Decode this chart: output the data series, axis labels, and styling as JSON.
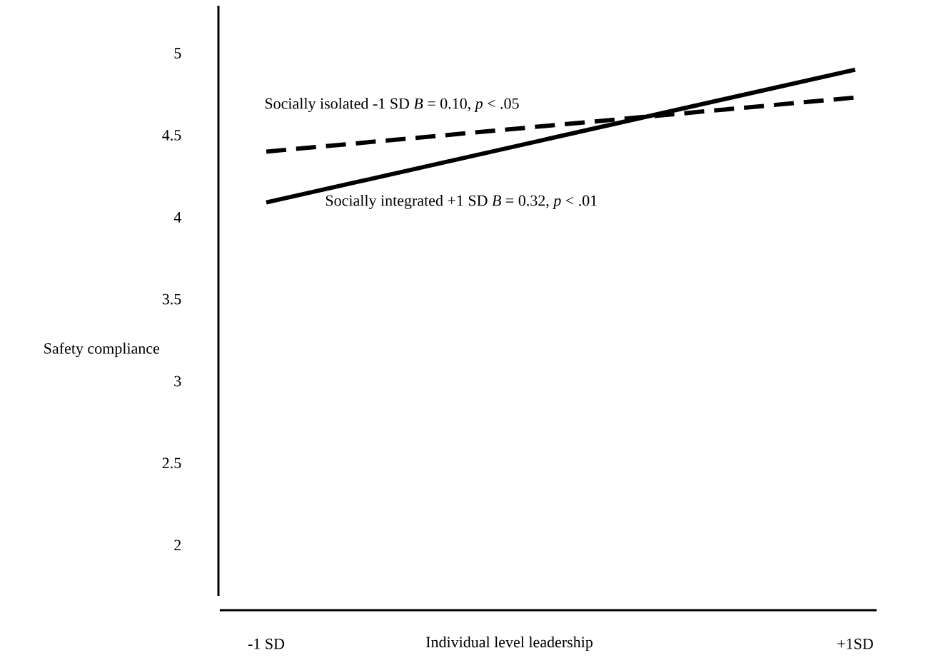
{
  "chart_data": {
    "type": "line",
    "xlabel": "Individual level leadership",
    "ylabel": "Safety compliance",
    "categories": [
      "-1 SD",
      "+1SD"
    ],
    "series": [
      {
        "color": "#000000",
        "line_style": "solid",
        "values": [
          4.09,
          4.9
        ]
      },
      {
        "color": "#000000",
        "line_style": "dashed",
        "values": [
          4.4,
          4.73
        ]
      }
    ],
    "ylim": [
      1.69,
      5.29
    ],
    "yticks": [
      2,
      2.5,
      3,
      3.5,
      4,
      4.5,
      5
    ],
    "annotations": [
      "Socially isolated -1 SD *B* = 0.10, *p* < .05",
      "Socially integrated +1 SD *B* = 0.32, *p* < .01"
    ],
    "grid": false,
    "marker": "none"
  }
}
